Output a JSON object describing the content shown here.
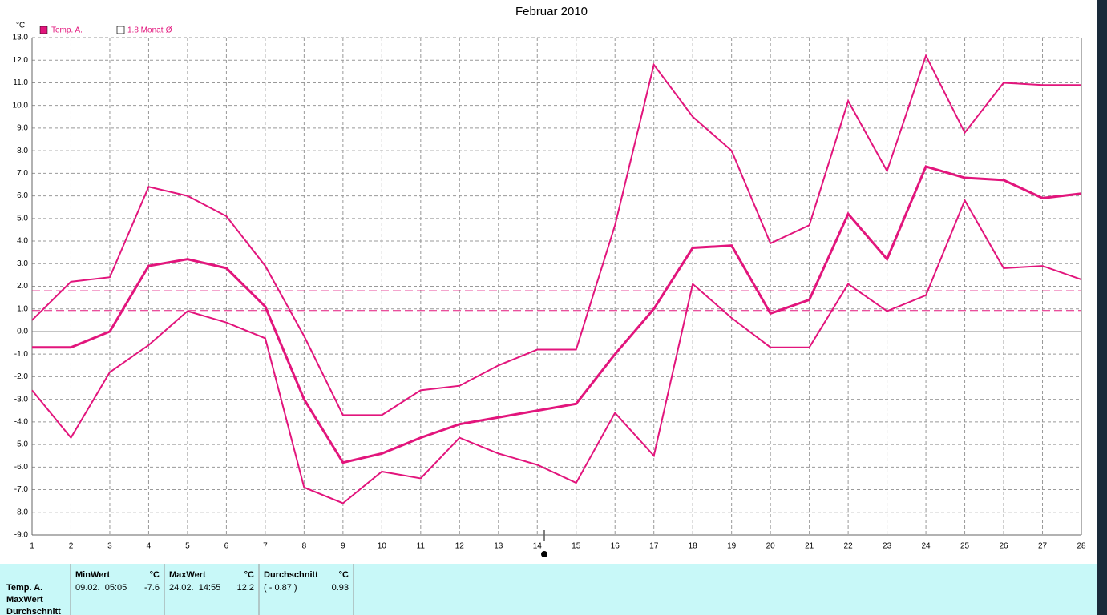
{
  "chart_data": {
    "type": "line",
    "title": "Februar 2010",
    "y_label": "°C",
    "x": [
      1,
      2,
      3,
      4,
      5,
      6,
      7,
      8,
      9,
      10,
      11,
      12,
      13,
      14,
      15,
      16,
      17,
      18,
      19,
      20,
      21,
      22,
      23,
      24,
      25,
      26,
      27,
      28
    ],
    "xlim": [
      1,
      28
    ],
    "xticks": [
      1,
      2,
      3,
      4,
      5,
      6,
      7,
      8,
      9,
      10,
      11,
      12,
      13,
      14,
      15,
      16,
      17,
      18,
      19,
      20,
      21,
      22,
      23,
      24,
      25,
      26,
      27,
      28
    ],
    "ylim": [
      -9,
      13
    ],
    "yticks": [
      {
        "value": 13,
        "label": "13.0"
      },
      {
        "value": 12,
        "label": "12.0"
      },
      {
        "value": 11,
        "label": "11.0"
      },
      {
        "value": 10,
        "label": "10.0"
      },
      {
        "value": 9,
        "label": "9.0"
      },
      {
        "value": 8,
        "label": "8.0"
      },
      {
        "value": 7,
        "label": "7.0"
      },
      {
        "value": 6,
        "label": "6.0"
      },
      {
        "value": 5,
        "label": "5.0"
      },
      {
        "value": 4,
        "label": "4.0"
      },
      {
        "value": 3,
        "label": "3.0"
      },
      {
        "value": 2,
        "label": "2.0"
      },
      {
        "value": 1,
        "label": "1.0"
      },
      {
        "value": 0,
        "label": "0.0"
      },
      {
        "value": -1,
        "label": "-1.0"
      },
      {
        "value": -2,
        "label": "-2.0"
      },
      {
        "value": -3,
        "label": "-3.0"
      },
      {
        "value": -4,
        "label": "-4.0"
      },
      {
        "value": -5,
        "label": "-5.0"
      },
      {
        "value": -6,
        "label": "-6.0"
      },
      {
        "value": -7,
        "label": "-7.0"
      },
      {
        "value": -8,
        "label": "-8.0"
      },
      {
        "value": -9,
        "label": "-9.0"
      }
    ],
    "grid": true,
    "color": "#e2157c",
    "legend": [
      "Temp. A.",
      "1.8 Monat-Ø"
    ],
    "series": [
      {
        "values": [
          0.5,
          2.2,
          2.4,
          6.4,
          6.0,
          5.1,
          2.9,
          -0.2,
          -3.7,
          -3.7,
          -2.6,
          -2.4,
          -1.5,
          -0.8,
          -0.8,
          4.7,
          11.8,
          9.5,
          8.0,
          3.9,
          4.7,
          10.2,
          7.1,
          12.2,
          8.8,
          11.0,
          10.9,
          10.9
        ],
        "width": 2
      },
      {
        "values": [
          -0.7,
          -0.7,
          0.0,
          2.9,
          3.2,
          2.8,
          1.1,
          -3.0,
          -5.8,
          -5.4,
          -4.7,
          -4.1,
          -3.8,
          -3.5,
          -3.2,
          -1.0,
          1.0,
          3.7,
          3.8,
          0.8,
          1.4,
          5.2,
          3.2,
          7.3,
          6.8,
          6.7,
          5.9,
          6.1
        ],
        "width": 3
      },
      {
        "values": [
          -2.6,
          -4.7,
          -1.8,
          -0.6,
          0.9,
          0.4,
          -0.3,
          -6.9,
          -7.6,
          -6.2,
          -6.5,
          -4.7,
          -5.4,
          -5.9,
          -6.7,
          -3.6,
          -5.5,
          2.1,
          0.6,
          -0.7,
          -0.7,
          2.1,
          0.9,
          1.6,
          5.8,
          2.8,
          2.9,
          2.3
        ],
        "width": 2
      }
    ],
    "reference_lines": [
      1.8,
      0.93
    ]
  },
  "stats": {
    "row_labels": [
      "Temp. A.",
      "MaxWert",
      "Durchschnitt"
    ],
    "columns": [
      {
        "header": "MinWert",
        "unit": "°C",
        "time": "09.02.  05:05",
        "value": "-7.6"
      },
      {
        "header": "MaxWert",
        "unit": "°C",
        "time": "24.02.  14:55",
        "value": "12.2"
      },
      {
        "header": "Durchschnitt",
        "unit": "°C",
        "time": "( - 0.87 )",
        "value": "0.93"
      }
    ]
  }
}
